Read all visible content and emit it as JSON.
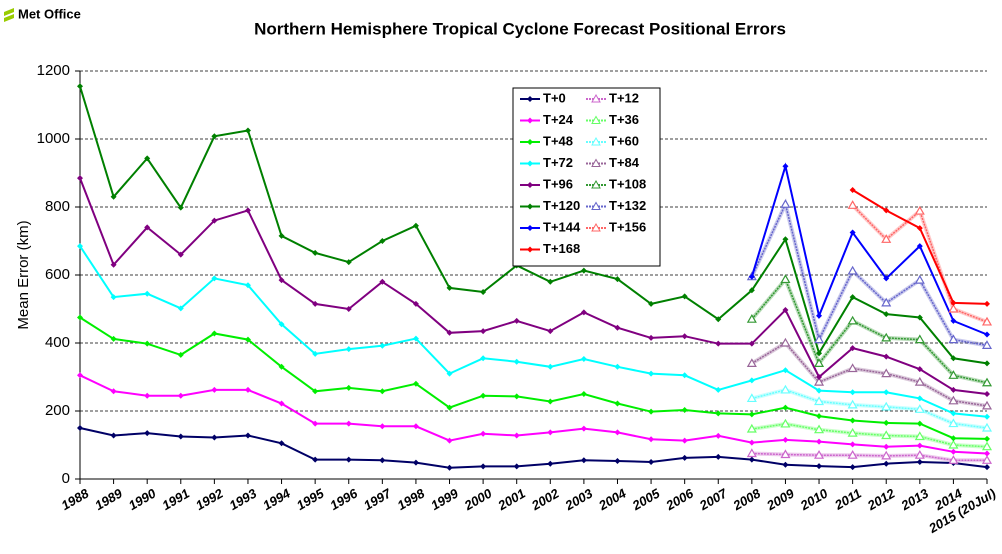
{
  "logo": "Met Office",
  "chart_data": {
    "type": "line",
    "title": "Northern Hemisphere Tropical Cyclone Forecast Positional Errors",
    "y_label": "Mean Error (km)",
    "categories": [
      "1988",
      "1989",
      "1990",
      "1991",
      "1992",
      "1993",
      "1994",
      "1995",
      "1996",
      "1997",
      "1998",
      "1999",
      "2000",
      "2001",
      "2002",
      "2003",
      "2004",
      "2005",
      "2006",
      "2007",
      "2008",
      "2009",
      "2010",
      "2011",
      "2012",
      "2013",
      "2014",
      "2015 (20Jul)"
    ],
    "ylim": [
      0,
      1200
    ],
    "yticks": [
      0,
      200,
      400,
      600,
      800,
      1000,
      1200
    ],
    "grid": true,
    "series": [
      {
        "name": "T+0",
        "color": "#000066",
        "marker": "diamond",
        "values": [
          150,
          128,
          135,
          125,
          122,
          128,
          105,
          57,
          57,
          55,
          48,
          33,
          37,
          37,
          45,
          55,
          53,
          50,
          62,
          65,
          57,
          42,
          38,
          35,
          45,
          50,
          47,
          35
        ]
      },
      {
        "name": "T+12",
        "color": "#cc66cc",
        "marker": "triangle",
        "values": [
          null,
          null,
          null,
          null,
          null,
          null,
          null,
          null,
          null,
          null,
          null,
          null,
          null,
          null,
          null,
          null,
          null,
          null,
          null,
          null,
          75,
          72,
          70,
          70,
          68,
          70,
          55,
          55
        ]
      },
      {
        "name": "T+24",
        "color": "#ff00ff",
        "marker": "diamond",
        "values": [
          305,
          258,
          245,
          245,
          262,
          262,
          222,
          163,
          163,
          155,
          155,
          113,
          133,
          128,
          137,
          148,
          137,
          117,
          113,
          127,
          107,
          115,
          110,
          102,
          95,
          98,
          80,
          75
        ]
      },
      {
        "name": "T+36",
        "color": "#66ff66",
        "marker": "triangle",
        "values": [
          null,
          null,
          null,
          null,
          null,
          null,
          null,
          null,
          null,
          null,
          null,
          null,
          null,
          null,
          null,
          null,
          null,
          null,
          null,
          null,
          147,
          162,
          145,
          135,
          128,
          125,
          100,
          95
        ]
      },
      {
        "name": "T+48",
        "color": "#00ee00",
        "marker": "diamond",
        "values": [
          475,
          412,
          398,
          365,
          428,
          410,
          330,
          258,
          268,
          258,
          280,
          210,
          245,
          243,
          228,
          250,
          222,
          198,
          203,
          193,
          190,
          210,
          185,
          172,
          165,
          163,
          120,
          118
        ]
      },
      {
        "name": "T+60",
        "color": "#66ffff",
        "marker": "triangle",
        "values": [
          null,
          null,
          null,
          null,
          null,
          null,
          null,
          null,
          null,
          null,
          null,
          null,
          null,
          null,
          null,
          null,
          null,
          null,
          null,
          null,
          237,
          262,
          228,
          218,
          212,
          205,
          163,
          150
        ]
      },
      {
        "name": "T+72",
        "color": "#00ffff",
        "marker": "diamond",
        "values": [
          685,
          535,
          545,
          502,
          590,
          570,
          455,
          368,
          382,
          392,
          413,
          310,
          355,
          345,
          330,
          353,
          330,
          310,
          305,
          262,
          290,
          320,
          260,
          255,
          255,
          237,
          193,
          183
        ]
      },
      {
        "name": "T+84",
        "color": "#996699",
        "marker": "triangle",
        "values": [
          null,
          null,
          null,
          null,
          null,
          null,
          null,
          null,
          null,
          null,
          null,
          null,
          null,
          null,
          null,
          null,
          null,
          null,
          null,
          null,
          340,
          400,
          285,
          325,
          310,
          285,
          230,
          215
        ]
      },
      {
        "name": "T+96",
        "color": "#800080",
        "marker": "diamond",
        "values": [
          885,
          630,
          740,
          660,
          760,
          790,
          585,
          515,
          500,
          580,
          515,
          430,
          435,
          465,
          435,
          490,
          445,
          415,
          420,
          398,
          398,
          497,
          300,
          385,
          360,
          323,
          262,
          250
        ]
      },
      {
        "name": "T+108",
        "color": "#339933",
        "marker": "triangle",
        "values": [
          null,
          null,
          null,
          null,
          null,
          null,
          null,
          null,
          null,
          null,
          null,
          null,
          null,
          null,
          null,
          null,
          null,
          null,
          null,
          null,
          470,
          587,
          340,
          465,
          415,
          410,
          305,
          283
        ]
      },
      {
        "name": "T+120",
        "color": "#008000",
        "marker": "diamond",
        "values": [
          1155,
          830,
          943,
          798,
          1008,
          1025,
          715,
          665,
          638,
          700,
          745,
          562,
          550,
          628,
          580,
          613,
          588,
          515,
          537,
          470,
          555,
          705,
          370,
          535,
          485,
          475,
          355,
          340
        ]
      },
      {
        "name": "T+132",
        "color": "#6666cc",
        "marker": "triangle",
        "values": [
          null,
          null,
          null,
          null,
          null,
          null,
          null,
          null,
          null,
          null,
          null,
          null,
          null,
          null,
          null,
          null,
          null,
          null,
          null,
          null,
          595,
          808,
          410,
          612,
          518,
          585,
          410,
          393
        ]
      },
      {
        "name": "T+144",
        "color": "#0000ff",
        "marker": "diamond",
        "values": [
          null,
          null,
          null,
          null,
          null,
          null,
          null,
          null,
          null,
          null,
          null,
          null,
          null,
          null,
          null,
          null,
          null,
          null,
          null,
          null,
          595,
          920,
          480,
          725,
          590,
          685,
          465,
          425
        ]
      },
      {
        "name": "T+156",
        "color": "#ff6666",
        "marker": "triangle",
        "values": [
          null,
          null,
          null,
          null,
          null,
          null,
          null,
          null,
          null,
          null,
          null,
          null,
          null,
          null,
          null,
          null,
          null,
          null,
          null,
          null,
          null,
          null,
          null,
          805,
          705,
          788,
          500,
          462
        ]
      },
      {
        "name": "T+168",
        "color": "#ff0000",
        "marker": "diamond",
        "values": [
          null,
          null,
          null,
          null,
          null,
          null,
          null,
          null,
          null,
          null,
          null,
          null,
          null,
          null,
          null,
          null,
          null,
          null,
          null,
          null,
          null,
          null,
          null,
          850,
          790,
          738,
          518,
          515
        ]
      }
    ]
  }
}
